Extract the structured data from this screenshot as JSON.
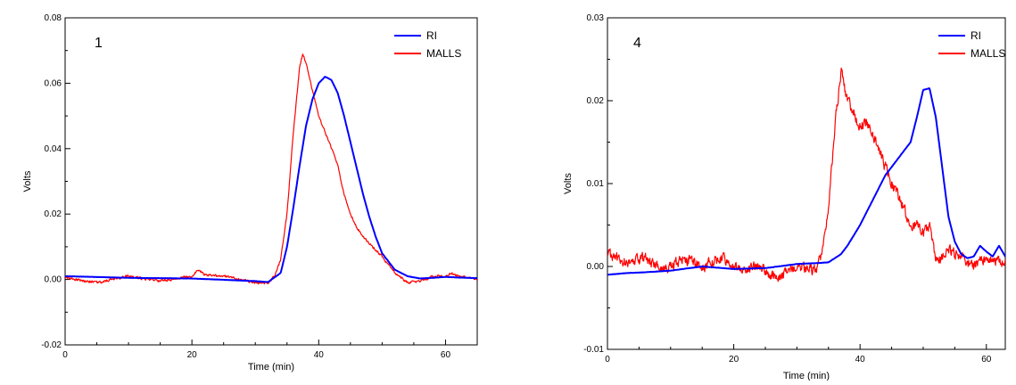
{
  "chart_data": [
    {
      "type": "line",
      "panel_label": "1",
      "xlabel": "Time (min)",
      "ylabel": "Volts",
      "xlim": [
        0,
        65
      ],
      "ylim": [
        -0.02,
        0.08
      ],
      "xticks": [
        0,
        20,
        40,
        60
      ],
      "xtick_labels": [
        "0",
        "20",
        "40",
        "60"
      ],
      "yticks": [
        -0.02,
        0,
        0.02,
        0.04,
        0.06,
        0.08
      ],
      "ytick_labels": [
        "-0.02",
        "0.00",
        "0.02",
        "0.04",
        "0.06",
        "0.08"
      ],
      "grid": false,
      "legend_position": "top-right",
      "series": [
        {
          "name": "RI",
          "color": "#0000ff",
          "x": [
            0,
            10,
            20,
            30,
            32,
            34,
            35,
            36,
            37,
            38,
            39,
            40,
            41,
            42,
            43,
            44,
            45,
            46,
            47,
            48,
            49,
            50,
            52,
            54,
            56,
            58,
            60,
            62,
            65
          ],
          "y": [
            0.001,
            0.0005,
            0.0003,
            -0.0005,
            -0.0008,
            0.002,
            0.01,
            0.022,
            0.035,
            0.047,
            0.055,
            0.06,
            0.062,
            0.061,
            0.057,
            0.05,
            0.042,
            0.034,
            0.026,
            0.019,
            0.013,
            0.008,
            0.003,
            0.001,
            0.0003,
            0.0005,
            0.0008,
            0.0006,
            0.0004
          ]
        },
        {
          "name": "MALLS",
          "color": "#ff0000",
          "x": [
            0,
            5,
            10,
            15,
            20,
            21,
            22,
            25,
            30,
            32,
            33,
            34,
            35,
            36,
            37,
            37.5,
            38,
            39,
            40,
            41,
            42,
            43,
            44,
            45,
            46,
            47,
            48,
            49,
            50,
            52,
            54,
            56,
            58,
            60,
            61,
            62,
            65
          ],
          "y": [
            0.0005,
            -0.001,
            0.001,
            -0.0005,
            0.001,
            0.003,
            0.0015,
            0.001,
            -0.001,
            -0.001,
            0.001,
            0.006,
            0.02,
            0.045,
            0.065,
            0.069,
            0.066,
            0.058,
            0.05,
            0.045,
            0.04,
            0.035,
            0.026,
            0.02,
            0.016,
            0.013,
            0.011,
            0.009,
            0.007,
            0.002,
            -0.001,
            -0.0005,
            0.001,
            0.001,
            0.002,
            0.001,
            0
          ]
        }
      ]
    },
    {
      "type": "line",
      "panel_label": "4",
      "xlabel": "Time (min)",
      "ylabel": "Volts",
      "xlim": [
        0,
        63
      ],
      "ylim": [
        -0.01,
        0.03
      ],
      "xticks": [
        0,
        20,
        40,
        60
      ],
      "xtick_labels": [
        "0",
        "20",
        "40",
        "60"
      ],
      "yticks": [
        -0.01,
        0,
        0.01,
        0.02,
        0.03
      ],
      "ytick_labels": [
        "-0.01",
        "0.00",
        "0.01",
        "0.02",
        "0.03"
      ],
      "grid": false,
      "legend_position": "top-right",
      "series": [
        {
          "name": "RI",
          "color": "#0000ff",
          "x": [
            0,
            3,
            6,
            10,
            15,
            20,
            25,
            30,
            33,
            35,
            37,
            38,
            40,
            42,
            44,
            46,
            48,
            49,
            50,
            51,
            52,
            53,
            54,
            55,
            56,
            57,
            58,
            59,
            60,
            61,
            62,
            63
          ],
          "y": [
            -0.001,
            -0.0008,
            -0.0007,
            -0.0005,
            0,
            -0.0003,
            -0.0002,
            0.0003,
            0.0004,
            0.0005,
            0.0015,
            0.0025,
            0.005,
            0.008,
            0.011,
            0.013,
            0.015,
            0.018,
            0.0213,
            0.0215,
            0.018,
            0.012,
            0.006,
            0.003,
            0.0015,
            0.001,
            0.0012,
            0.0025,
            0.0018,
            0.0012,
            0.0025,
            0.0012
          ]
        },
        {
          "name": "MALLS",
          "color": "#ff0000",
          "x": [
            0,
            3,
            6,
            9,
            12,
            15,
            18,
            21,
            24,
            27,
            30,
            33,
            34,
            35,
            36,
            37,
            38,
            39,
            40,
            41,
            42,
            43,
            44,
            45,
            46,
            47,
            48,
            49,
            50,
            51,
            52,
            54,
            56,
            58,
            60,
            62,
            63
          ],
          "y": [
            0.0015,
            0.0005,
            0.001,
            -0.0005,
            0.001,
            0,
            0.001,
            -0.0005,
            0,
            -0.0015,
            0,
            -0.0005,
            0.0015,
            0.007,
            0.017,
            0.0235,
            0.02,
            0.0185,
            0.017,
            0.0175,
            0.016,
            0.014,
            0.012,
            0.01,
            0.0085,
            0.007,
            0.005,
            0.005,
            0.004,
            0.005,
            0.0005,
            0.002,
            0.001,
            0,
            0.001,
            0.0005,
            0.001
          ]
        }
      ]
    }
  ]
}
